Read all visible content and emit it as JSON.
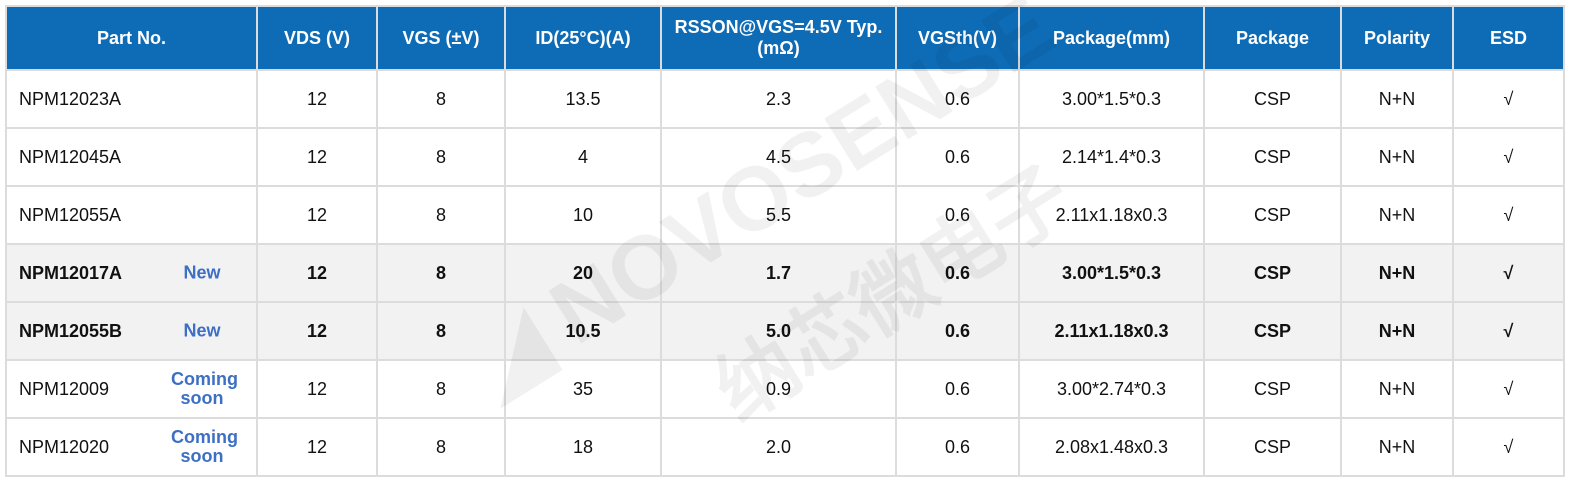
{
  "header_color": "#0e6bb5",
  "tag_color": "#3d6fc4",
  "watermark": {
    "brand": "NOVOSENSE",
    "brand_cn": "纳芯微电子"
  },
  "columns": [
    "Part No.",
    "VDS (V)",
    "VGS (±V)",
    "ID(25°C)(A)",
    "RSSON@VGS=4.5V Typ.(mΩ)",
    "VGSth(V)",
    "Package(mm)",
    "Package",
    "Polarity",
    "ESD"
  ],
  "rows": [
    {
      "part": "NPM12023A",
      "tag": "",
      "vds": "12",
      "vgs": "8",
      "id": "13.5",
      "rds": "2.3",
      "vth": "0.6",
      "pkg_mm": "3.00*1.5*0.3",
      "pkg": "CSP",
      "pol": "N+N",
      "esd": "√",
      "highlight": false
    },
    {
      "part": "NPM12045A",
      "tag": "",
      "vds": "12",
      "vgs": "8",
      "id": "4",
      "rds": "4.5",
      "vth": "0.6",
      "pkg_mm": "2.14*1.4*0.3",
      "pkg": "CSP",
      "pol": "N+N",
      "esd": "√",
      "highlight": false
    },
    {
      "part": "NPM12055A",
      "tag": "",
      "vds": "12",
      "vgs": "8",
      "id": "10",
      "rds": "5.5",
      "vth": "0.6",
      "pkg_mm": "2.11x1.18x0.3",
      "pkg": "CSP",
      "pol": "N+N",
      "esd": "√",
      "highlight": false
    },
    {
      "part": "NPM12017A",
      "tag": "New",
      "vds": "12",
      "vgs": "8",
      "id": "20",
      "rds": "1.7",
      "vth": "0.6",
      "pkg_mm": "3.00*1.5*0.3",
      "pkg": "CSP",
      "pol": "N+N",
      "esd": "√",
      "highlight": true
    },
    {
      "part": "NPM12055B",
      "tag": "New",
      "vds": "12",
      "vgs": "8",
      "id": "10.5",
      "rds": "5.0",
      "vth": "0.6",
      "pkg_mm": "2.11x1.18x0.3",
      "pkg": "CSP",
      "pol": "N+N",
      "esd": "√",
      "highlight": true
    },
    {
      "part": "NPM12009",
      "tag": "Coming soon",
      "vds": "12",
      "vgs": "8",
      "id": "35",
      "rds": "0.9",
      "vth": "0.6",
      "pkg_mm": "3.00*2.74*0.3",
      "pkg": "CSP",
      "pol": "N+N",
      "esd": "√",
      "highlight": false
    },
    {
      "part": "NPM12020",
      "tag": "Coming soon",
      "vds": "12",
      "vgs": "8",
      "id": "18",
      "rds": "2.0",
      "vth": "0.6",
      "pkg_mm": "2.08x1.48x0.3",
      "pkg": "CSP",
      "pol": "N+N",
      "esd": "√",
      "highlight": false
    }
  ]
}
